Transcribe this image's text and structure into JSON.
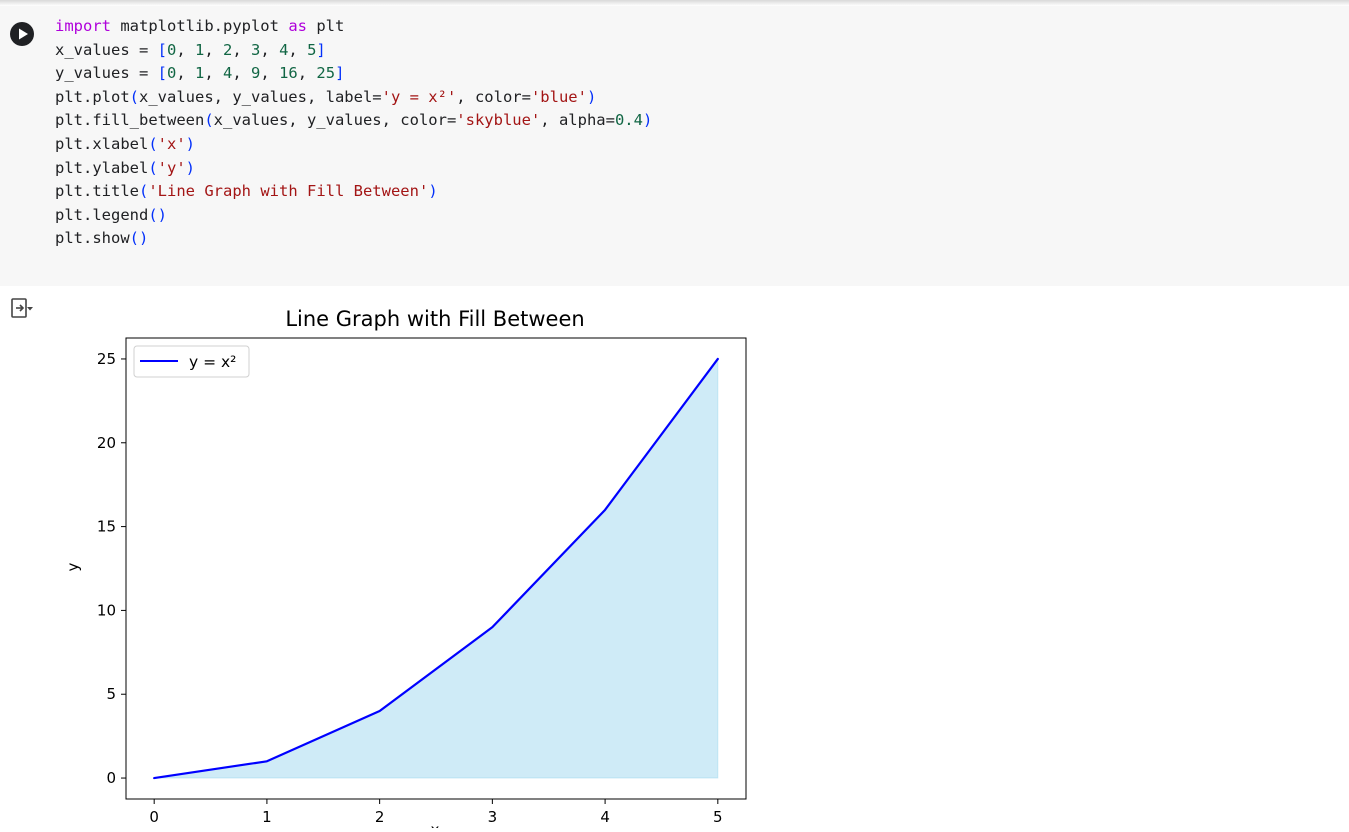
{
  "cell": {
    "code_lines": [
      [
        [
          "import",
          "kw"
        ],
        [
          " matplotlib.pyplot ",
          "txt"
        ],
        [
          "as",
          "kw"
        ],
        [
          " plt",
          "txt"
        ]
      ],
      [
        [
          "x_values = ",
          "txt"
        ],
        [
          "[",
          "br"
        ],
        [
          "0",
          "num"
        ],
        [
          ", ",
          "txt"
        ],
        [
          "1",
          "num"
        ],
        [
          ", ",
          "txt"
        ],
        [
          "2",
          "num"
        ],
        [
          ", ",
          "txt"
        ],
        [
          "3",
          "num"
        ],
        [
          ", ",
          "txt"
        ],
        [
          "4",
          "num"
        ],
        [
          ", ",
          "txt"
        ],
        [
          "5",
          "num"
        ],
        [
          "]",
          "br"
        ]
      ],
      [
        [
          "y_values = ",
          "txt"
        ],
        [
          "[",
          "br"
        ],
        [
          "0",
          "num"
        ],
        [
          ", ",
          "txt"
        ],
        [
          "1",
          "num"
        ],
        [
          ", ",
          "txt"
        ],
        [
          "4",
          "num"
        ],
        [
          ", ",
          "txt"
        ],
        [
          "9",
          "num"
        ],
        [
          ", ",
          "txt"
        ],
        [
          "16",
          "num"
        ],
        [
          ", ",
          "txt"
        ],
        [
          "25",
          "num"
        ],
        [
          "]",
          "br"
        ]
      ],
      [
        [
          "plt.plot",
          "txt"
        ],
        [
          "(",
          "br"
        ],
        [
          "x_values, y_values, label=",
          "txt"
        ],
        [
          "'y = x²'",
          "str"
        ],
        [
          ", color=",
          "txt"
        ],
        [
          "'blue'",
          "str"
        ],
        [
          ")",
          "br"
        ]
      ],
      [
        [
          "plt.fill_between",
          "txt"
        ],
        [
          "(",
          "br"
        ],
        [
          "x_values, y_values, color=",
          "txt"
        ],
        [
          "'skyblue'",
          "str"
        ],
        [
          ", alpha=",
          "txt"
        ],
        [
          "0.4",
          "num"
        ],
        [
          ")",
          "br"
        ]
      ],
      [
        [
          "plt.xlabel",
          "txt"
        ],
        [
          "(",
          "br"
        ],
        [
          "'x'",
          "str"
        ],
        [
          ")",
          "br"
        ]
      ],
      [
        [
          "plt.ylabel",
          "txt"
        ],
        [
          "(",
          "br"
        ],
        [
          "'y'",
          "str"
        ],
        [
          ")",
          "br"
        ]
      ],
      [
        [
          "plt.title",
          "txt"
        ],
        [
          "(",
          "br"
        ],
        [
          "'Line Graph with Fill Between'",
          "str"
        ],
        [
          ")",
          "br"
        ]
      ],
      [
        [
          "plt.legend",
          "txt"
        ],
        [
          "()",
          "br"
        ]
      ],
      [
        [
          "plt.show",
          "txt"
        ],
        [
          "()",
          "br"
        ]
      ]
    ],
    "run_icon": "play-icon",
    "output_icon": "output-toggle-icon"
  },
  "chart_data": {
    "type": "area",
    "title": "Line Graph with Fill Between",
    "xlabel": "x",
    "ylabel": "y",
    "x": [
      0,
      1,
      2,
      3,
      4,
      5
    ],
    "series": [
      {
        "name": "y = x²",
        "values": [
          0,
          1,
          4,
          9,
          16,
          25
        ],
        "line_color": "#0000ff",
        "fill_color": "#87ceeb",
        "fill_alpha": 0.4
      }
    ],
    "xticks": [
      0,
      1,
      2,
      3,
      4,
      5
    ],
    "yticks": [
      0,
      5,
      10,
      15,
      20,
      25
    ],
    "xlim": [
      -0.25,
      5.25
    ],
    "ylim": [
      -1.25,
      26.25
    ],
    "legend_position": "upper-left",
    "grid": false
  }
}
